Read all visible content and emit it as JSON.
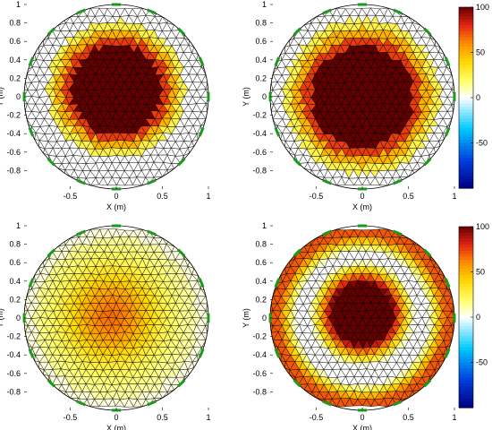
{
  "chart_data": [
    {
      "type": "heatmap",
      "subtype": "EIT conductivity reconstruction on triangular FEM mesh (circular domain)",
      "xlabel": "X (m)",
      "ylabel": "Y (m)",
      "xlim": [
        -1,
        1
      ],
      "ylim": [
        -1,
        1
      ],
      "xticks": [
        "-0.5",
        "0",
        "0.5",
        "1"
      ],
      "yticks": [
        "1",
        "0.8",
        "0.6",
        "0.4",
        "0.2",
        "0",
        "-0.2",
        "-0.4",
        "-0.6",
        "-0.8"
      ],
      "colormap": "jet-like",
      "clim": [
        -100,
        100
      ],
      "colorbar": false,
      "field": {
        "center": [
          0.0,
          0.08
        ],
        "radius": 0.62,
        "peak": 100,
        "profile": "plateau",
        "level_step": 25
      }
    },
    {
      "type": "heatmap",
      "xlabel": "X (m)",
      "ylabel": "Y (m)",
      "xlim": [
        -1,
        1
      ],
      "ylim": [
        -1,
        1
      ],
      "xticks": [
        "-0.5",
        "0",
        "0.5",
        "1"
      ],
      "yticks": [
        "1",
        "0.8",
        "0.6",
        "0.4",
        "0.2",
        "0",
        "-0.2",
        "-0.4",
        "-0.6",
        "-0.8"
      ],
      "colormap": "jet-like",
      "clim": [
        -100,
        100
      ],
      "colorbar": true,
      "colorbar_ticks": [
        "100",
        "50",
        "0",
        "-50"
      ],
      "field": {
        "center": [
          0.0,
          0.0
        ],
        "radius": 0.7,
        "peak": 100,
        "profile": "plateau",
        "level_step": 25
      }
    },
    {
      "type": "heatmap",
      "xlabel": "X (m)",
      "ylabel": "Y (m)",
      "xlim": [
        -1,
        1
      ],
      "ylim": [
        -1,
        1
      ],
      "xticks": [
        "-0.5",
        "0",
        "0.5",
        "1"
      ],
      "yticks": [
        "1",
        "0.8",
        "0.6",
        "0.4",
        "0.2",
        "0",
        "-0.2",
        "-0.4",
        "-0.6",
        "-0.8"
      ],
      "colormap": "jet-like",
      "clim": [
        -100,
        100
      ],
      "colorbar": false,
      "field": {
        "center": [
          -0.05,
          0.02
        ],
        "radius": 0.85,
        "peak": 58,
        "profile": "smooth",
        "level_step": 0
      }
    },
    {
      "type": "heatmap",
      "xlabel": "X (m)",
      "ylabel": "Y (m)",
      "xlim": [
        -1,
        1
      ],
      "ylim": [
        -1,
        1
      ],
      "xticks": [
        "-0.5",
        "0",
        "0.5",
        "1"
      ],
      "yticks": [
        "1",
        "0.8",
        "0.6",
        "0.4",
        "0.2",
        "0",
        "-0.2",
        "-0.4",
        "-0.6",
        "-0.8"
      ],
      "colormap": "jet-like",
      "clim": [
        -100,
        100
      ],
      "colorbar": true,
      "colorbar_ticks": [
        "100",
        "50",
        "0",
        "-50"
      ],
      "field": {
        "center": [
          0.0,
          0.05
        ],
        "radius": 0.45,
        "peak": 100,
        "profile": "plateau-with-rim",
        "rim_value": 70,
        "level_step": 0
      }
    }
  ],
  "colors": {
    "mesh_edges": "#000000",
    "electrodes": "#1a9a1a",
    "background": "#ffffff"
  }
}
